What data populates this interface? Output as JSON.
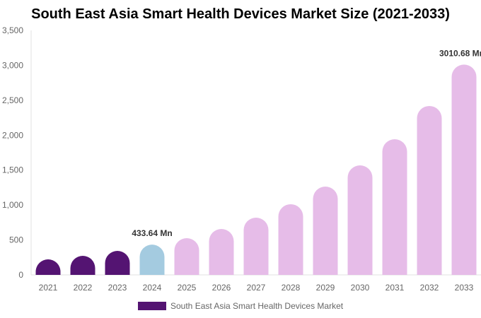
{
  "chart_data": {
    "type": "bar",
    "title": "South East Asia Smart Health Devices Market Size (2021-2033)",
    "categories": [
      "2021",
      "2022",
      "2023",
      "2024",
      "2025",
      "2026",
      "2027",
      "2028",
      "2029",
      "2030",
      "2031",
      "2032",
      "2033"
    ],
    "series": [
      {
        "name": "South East Asia Smart Health Devices Market",
        "values": [
          222,
          273,
          344,
          433.64,
          526,
          657,
          819,
          1012,
          1264,
          1568,
          1942,
          2418,
          3010.68
        ]
      }
    ],
    "data_labels": {
      "3": "433.64 Mn",
      "12": "3010.68 Mn"
    },
    "ylim": [
      0,
      3500
    ],
    "yticks": [
      0,
      500,
      1000,
      1500,
      2000,
      2500,
      3000,
      3500
    ],
    "ytick_labels": [
      "0",
      "500",
      "1,000",
      "1,500",
      "2,000",
      "2,500",
      "3,000",
      "3,500"
    ],
    "grid": false,
    "legend_position": "bottom",
    "colors": {
      "historical": "#541472",
      "base_year": "#a4cbe0",
      "forecast": "#e6bce8"
    }
  }
}
